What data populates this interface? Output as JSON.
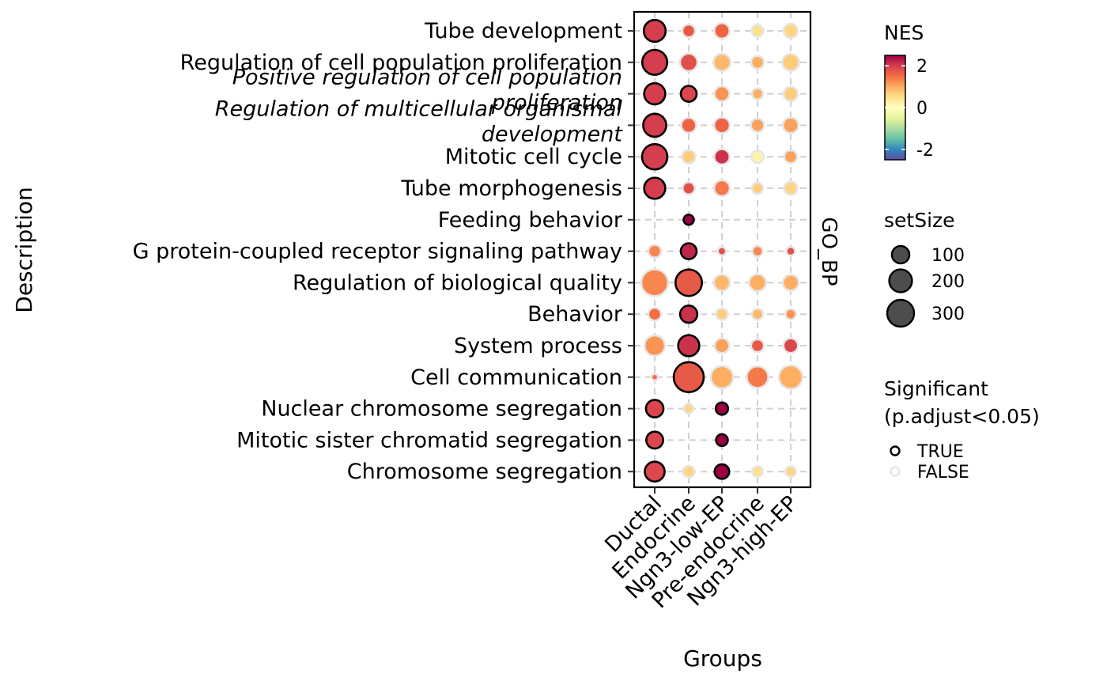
{
  "chart_data": {
    "type": "scatter",
    "xlabel": "Groups",
    "ylabel": "Description",
    "facet_label": "GO_BP",
    "groups": [
      "Ductal",
      "Endocrine",
      "Ngn3-low-EP",
      "Pre-endocrine",
      "Ngn3-high-EP"
    ],
    "terms": [
      {
        "label": "Tube development",
        "lines": [
          "Tube development"
        ],
        "italic": false
      },
      {
        "label": "Regulation of cell population proliferation",
        "lines": [
          "Regulation of cell population proliferation"
        ],
        "italic": false
      },
      {
        "label": "Positive regulation of cell population proliferation",
        "lines": [
          "Positive regulation of cell population",
          "proliferation"
        ],
        "italic": true
      },
      {
        "label": "Regulation of multicellular organismal development",
        "lines": [
          "Regulation of multicellular organismal",
          "development"
        ],
        "italic": true
      },
      {
        "label": "Mitotic cell cycle",
        "lines": [
          "Mitotic cell cycle"
        ],
        "italic": false
      },
      {
        "label": "Tube morphogenesis",
        "lines": [
          "Tube morphogenesis"
        ],
        "italic": false
      },
      {
        "label": "Feeding behavior",
        "lines": [
          "Feeding behavior"
        ],
        "italic": false
      },
      {
        "label": "G protein-coupled receptor signaling pathway",
        "lines": [
          "G protein-coupled receptor signaling pathway"
        ],
        "italic": false
      },
      {
        "label": "Regulation of biological quality",
        "lines": [
          "Regulation of biological quality"
        ],
        "italic": false
      },
      {
        "label": "Behavior",
        "lines": [
          "Behavior"
        ],
        "italic": false
      },
      {
        "label": "System process",
        "lines": [
          "System process"
        ],
        "italic": false
      },
      {
        "label": "Cell communication",
        "lines": [
          "Cell communication"
        ],
        "italic": false
      },
      {
        "label": "Nuclear chromosome segregation",
        "lines": [
          "Nuclear chromosome segregation"
        ],
        "italic": false
      },
      {
        "label": "Mitotic sister chromatid segregation",
        "lines": [
          "Mitotic sister chromatid segregation"
        ],
        "italic": false
      },
      {
        "label": "Chromosome segregation",
        "lines": [
          "Chromosome segregation"
        ],
        "italic": false
      }
    ],
    "points": [
      {
        "term": 0,
        "group": 0,
        "setSize": 180,
        "nes": 2.0,
        "significant": true
      },
      {
        "term": 0,
        "group": 1,
        "setSize": 40,
        "nes": 1.7,
        "significant": false
      },
      {
        "term": 0,
        "group": 2,
        "setSize": 70,
        "nes": 1.6,
        "significant": false
      },
      {
        "term": 0,
        "group": 3,
        "setSize": 30,
        "nes": 0.5,
        "significant": false
      },
      {
        "term": 0,
        "group": 4,
        "setSize": 55,
        "nes": 0.6,
        "significant": false
      },
      {
        "term": 1,
        "group": 0,
        "setSize": 250,
        "nes": 2.0,
        "significant": true
      },
      {
        "term": 1,
        "group": 1,
        "setSize": 100,
        "nes": 1.8,
        "significant": false
      },
      {
        "term": 1,
        "group": 2,
        "setSize": 95,
        "nes": 0.9,
        "significant": false
      },
      {
        "term": 1,
        "group": 3,
        "setSize": 40,
        "nes": 1.0,
        "significant": false
      },
      {
        "term": 1,
        "group": 4,
        "setSize": 90,
        "nes": 0.7,
        "significant": false
      },
      {
        "term": 2,
        "group": 0,
        "setSize": 165,
        "nes": 2.0,
        "significant": true
      },
      {
        "term": 2,
        "group": 1,
        "setSize": 75,
        "nes": 1.9,
        "significant": true
      },
      {
        "term": 2,
        "group": 2,
        "setSize": 65,
        "nes": 1.2,
        "significant": false
      },
      {
        "term": 2,
        "group": 3,
        "setSize": 25,
        "nes": 1.0,
        "significant": false
      },
      {
        "term": 2,
        "group": 4,
        "setSize": 55,
        "nes": 0.7,
        "significant": false
      },
      {
        "term": 3,
        "group": 0,
        "setSize": 205,
        "nes": 2.0,
        "significant": true
      },
      {
        "term": 3,
        "group": 1,
        "setSize": 65,
        "nes": 1.6,
        "significant": false
      },
      {
        "term": 3,
        "group": 2,
        "setSize": 75,
        "nes": 1.6,
        "significant": false
      },
      {
        "term": 3,
        "group": 3,
        "setSize": 45,
        "nes": 1.1,
        "significant": false
      },
      {
        "term": 3,
        "group": 4,
        "setSize": 70,
        "nes": 1.1,
        "significant": false
      },
      {
        "term": 4,
        "group": 0,
        "setSize": 260,
        "nes": 2.0,
        "significant": true
      },
      {
        "term": 4,
        "group": 1,
        "setSize": 45,
        "nes": 0.7,
        "significant": false
      },
      {
        "term": 4,
        "group": 2,
        "setSize": 70,
        "nes": 2.1,
        "significant": false
      },
      {
        "term": 4,
        "group": 3,
        "setSize": 35,
        "nes": 0.2,
        "significant": false
      },
      {
        "term": 4,
        "group": 4,
        "setSize": 40,
        "nes": 1.1,
        "significant": false
      },
      {
        "term": 5,
        "group": 0,
        "setSize": 165,
        "nes": 2.0,
        "significant": true
      },
      {
        "term": 5,
        "group": 1,
        "setSize": 35,
        "nes": 1.8,
        "significant": false
      },
      {
        "term": 5,
        "group": 2,
        "setSize": 75,
        "nes": 1.4,
        "significant": false
      },
      {
        "term": 5,
        "group": 3,
        "setSize": 25,
        "nes": 0.7,
        "significant": false
      },
      {
        "term": 5,
        "group": 4,
        "setSize": 45,
        "nes": 0.6,
        "significant": false
      },
      {
        "term": 6,
        "group": 1,
        "setSize": 18,
        "nes": 2.5,
        "significant": true
      },
      {
        "term": 7,
        "group": 0,
        "setSize": 40,
        "nes": 1.3,
        "significant": false
      },
      {
        "term": 7,
        "group": 1,
        "setSize": 75,
        "nes": 2.2,
        "significant": true
      },
      {
        "term": 7,
        "group": 2,
        "setSize": 8,
        "nes": 1.8,
        "significant": false
      },
      {
        "term": 7,
        "group": 3,
        "setSize": 20,
        "nes": 1.3,
        "significant": false
      },
      {
        "term": 7,
        "group": 4,
        "setSize": 10,
        "nes": 1.8,
        "significant": false
      },
      {
        "term": 8,
        "group": 0,
        "setSize": 300,
        "nes": 1.3,
        "significant": false
      },
      {
        "term": 8,
        "group": 1,
        "setSize": 290,
        "nes": 1.7,
        "significant": true
      },
      {
        "term": 8,
        "group": 2,
        "setSize": 80,
        "nes": 0.9,
        "significant": false
      },
      {
        "term": 8,
        "group": 3,
        "setSize": 90,
        "nes": 1.0,
        "significant": false
      },
      {
        "term": 8,
        "group": 4,
        "setSize": 75,
        "nes": 1.0,
        "significant": false
      },
      {
        "term": 9,
        "group": 0,
        "setSize": 40,
        "nes": 1.5,
        "significant": false
      },
      {
        "term": 9,
        "group": 1,
        "setSize": 95,
        "nes": 2.1,
        "significant": true
      },
      {
        "term": 9,
        "group": 2,
        "setSize": 30,
        "nes": 0.7,
        "significant": false
      },
      {
        "term": 9,
        "group": 3,
        "setSize": 25,
        "nes": 0.9,
        "significant": false
      },
      {
        "term": 9,
        "group": 4,
        "setSize": 20,
        "nes": 1.2,
        "significant": false
      },
      {
        "term": 10,
        "group": 0,
        "setSize": 150,
        "nes": 1.2,
        "significant": false
      },
      {
        "term": 10,
        "group": 1,
        "setSize": 165,
        "nes": 2.1,
        "significant": true
      },
      {
        "term": 10,
        "group": 2,
        "setSize": 60,
        "nes": 1.1,
        "significant": false
      },
      {
        "term": 10,
        "group": 3,
        "setSize": 40,
        "nes": 1.7,
        "significant": false
      },
      {
        "term": 10,
        "group": 4,
        "setSize": 60,
        "nes": 1.9,
        "significant": false
      },
      {
        "term": 11,
        "group": 0,
        "setSize": 2,
        "nes": 1.5,
        "significant": false
      },
      {
        "term": 11,
        "group": 1,
        "setSize": 390,
        "nes": 1.7,
        "significant": true
      },
      {
        "term": 11,
        "group": 2,
        "setSize": 190,
        "nes": 1.0,
        "significant": false
      },
      {
        "term": 11,
        "group": 3,
        "setSize": 175,
        "nes": 1.4,
        "significant": false
      },
      {
        "term": 11,
        "group": 4,
        "setSize": 215,
        "nes": 1.0,
        "significant": false
      },
      {
        "term": 12,
        "group": 0,
        "setSize": 100,
        "nes": 1.9,
        "significant": true
      },
      {
        "term": 12,
        "group": 1,
        "setSize": 15,
        "nes": 0.6,
        "significant": false
      },
      {
        "term": 12,
        "group": 2,
        "setSize": 35,
        "nes": 2.5,
        "significant": true
      },
      {
        "term": 13,
        "group": 0,
        "setSize": 90,
        "nes": 1.9,
        "significant": true
      },
      {
        "term": 13,
        "group": 2,
        "setSize": 30,
        "nes": 2.5,
        "significant": true
      },
      {
        "term": 14,
        "group": 0,
        "setSize": 140,
        "nes": 1.9,
        "significant": true
      },
      {
        "term": 14,
        "group": 1,
        "setSize": 30,
        "nes": 0.6,
        "significant": false
      },
      {
        "term": 14,
        "group": 2,
        "setSize": 60,
        "nes": 2.5,
        "significant": true
      },
      {
        "term": 14,
        "group": 3,
        "setSize": 20,
        "nes": 0.5,
        "significant": false
      },
      {
        "term": 14,
        "group": 4,
        "setSize": 20,
        "nes": 0.6,
        "significant": false
      }
    ],
    "color_legend": {
      "title": "NES",
      "range": [
        -2.5,
        2.5
      ],
      "ticks": [
        2,
        0,
        -2
      ],
      "tick_labels": [
        "2",
        "0",
        "-2"
      ],
      "palette": [
        "#5e4fa2",
        "#3288bd",
        "#66c2a5",
        "#abdda4",
        "#e6f598",
        "#ffffbf",
        "#fee08b",
        "#fdae61",
        "#f46d43",
        "#d53e4f",
        "#9e0142"
      ]
    },
    "size_legend": {
      "title": "setSize",
      "values": [
        100,
        200,
        300
      ],
      "labels": [
        "100",
        "200",
        "300"
      ]
    },
    "significance_legend": {
      "title_lines": [
        "Significant",
        "(p.adjust<0.05)"
      ],
      "items": [
        {
          "label": "TRUE",
          "stroke": "#000000"
        },
        {
          "label": "FALSE",
          "stroke": "#e6e6e6"
        }
      ]
    },
    "grid": true,
    "legend_position": "right"
  }
}
